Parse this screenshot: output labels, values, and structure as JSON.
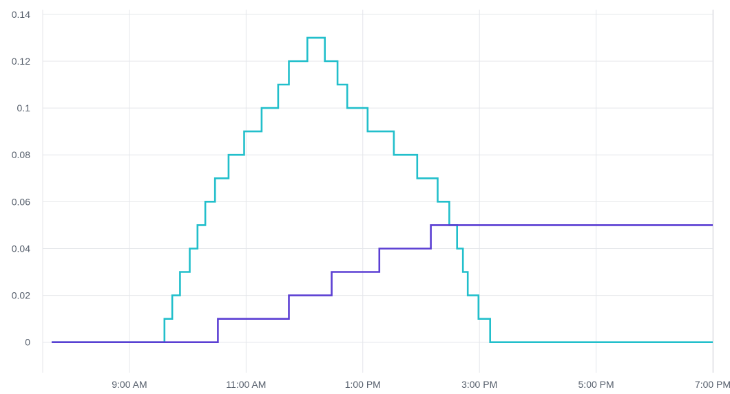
{
  "chart_data": {
    "type": "line",
    "step": true,
    "title": "",
    "xlabel": "",
    "ylabel": "",
    "grid": true,
    "legend": "none",
    "x_min": "7:40 AM",
    "x_max": "7:00 PM",
    "ylim": [
      -0.013,
      0.142
    ],
    "y_ticks": [
      0,
      0.02,
      0.04,
      0.06,
      0.08,
      0.1,
      0.12,
      0.14
    ],
    "y_tick_labels": [
      "0",
      "0.02",
      "0.04",
      "0.06",
      "0.08",
      "0.1",
      "0.12",
      "0.14"
    ],
    "x_ticks": [
      "9:00 AM",
      "11:00 AM",
      "1:00 PM",
      "3:00 PM",
      "5:00 PM",
      "7:00 PM"
    ],
    "x_tick_labels": [
      "9:00 AM",
      "11:00 AM",
      "1:00 PM",
      "3:00 PM",
      "5:00 PM",
      "7:00 PM"
    ],
    "series": [
      {
        "color": "#22bfcb",
        "points": [
          [
            "7:40 AM",
            0
          ],
          [
            "9:36 AM",
            0.01
          ],
          [
            "9:44 AM",
            0.02
          ],
          [
            "9:52 AM",
            0.03
          ],
          [
            "10:02 AM",
            0.04
          ],
          [
            "10:10 AM",
            0.05
          ],
          [
            "10:18 AM",
            0.06
          ],
          [
            "10:28 AM",
            0.07
          ],
          [
            "10:42 AM",
            0.08
          ],
          [
            "10:58 AM",
            0.09
          ],
          [
            "11:16 AM",
            0.1
          ],
          [
            "11:33 AM",
            0.11
          ],
          [
            "11:44 AM",
            0.12
          ],
          [
            "12:03 PM",
            0.13
          ],
          [
            "12:21 PM",
            0.12
          ],
          [
            "12:34 PM",
            0.11
          ],
          [
            "12:44 PM",
            0.1
          ],
          [
            "1:05 PM",
            0.09
          ],
          [
            "1:32 PM",
            0.08
          ],
          [
            "1:56 PM",
            0.07
          ],
          [
            "2:17 PM",
            0.06
          ],
          [
            "2:29 PM",
            0.05
          ],
          [
            "2:37 PM",
            0.04
          ],
          [
            "2:43 PM",
            0.03
          ],
          [
            "2:48 PM",
            0.02
          ],
          [
            "2:59 PM",
            0.01
          ],
          [
            "3:11 PM",
            0
          ],
          [
            "7:00 PM",
            0
          ]
        ]
      },
      {
        "color": "#5b3fd3",
        "points": [
          [
            "7:40 AM",
            0
          ],
          [
            "10:31 AM",
            0.01
          ],
          [
            "11:44 AM",
            0.02
          ],
          [
            "12:28 PM",
            0.03
          ],
          [
            "1:17 PM",
            0.04
          ],
          [
            "2:10 PM",
            0.05
          ],
          [
            "7:00 PM",
            0.05
          ]
        ]
      }
    ]
  }
}
